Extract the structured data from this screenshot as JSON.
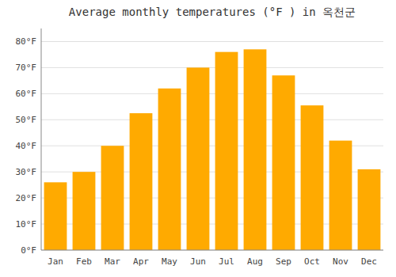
{
  "chart_data": {
    "type": "bar",
    "title": "Average monthly temperatures (°F ) in 옥천군",
    "categories": [
      "Jan",
      "Feb",
      "Mar",
      "Apr",
      "May",
      "Jun",
      "Jul",
      "Aug",
      "Sep",
      "Oct",
      "Nov",
      "Dec"
    ],
    "values": [
      26.0,
      30.0,
      40.0,
      52.5,
      62.0,
      70.0,
      76.0,
      77.0,
      67.0,
      55.5,
      42.0,
      31.0
    ],
    "color": "#FFAA00",
    "ylim": [
      0,
      85
    ],
    "yticks": [
      {
        "value": 0,
        "label": "0°F"
      },
      {
        "value": 10,
        "label": "10°F"
      },
      {
        "value": 20,
        "label": "20°F"
      },
      {
        "value": 30,
        "label": "30°F"
      },
      {
        "value": 40,
        "label": "40°F"
      },
      {
        "value": 50,
        "label": "50°F"
      },
      {
        "value": 60,
        "label": "60°F"
      },
      {
        "value": 70,
        "label": "70°F"
      },
      {
        "value": 80,
        "label": "80°F"
      }
    ],
    "grid": true
  }
}
